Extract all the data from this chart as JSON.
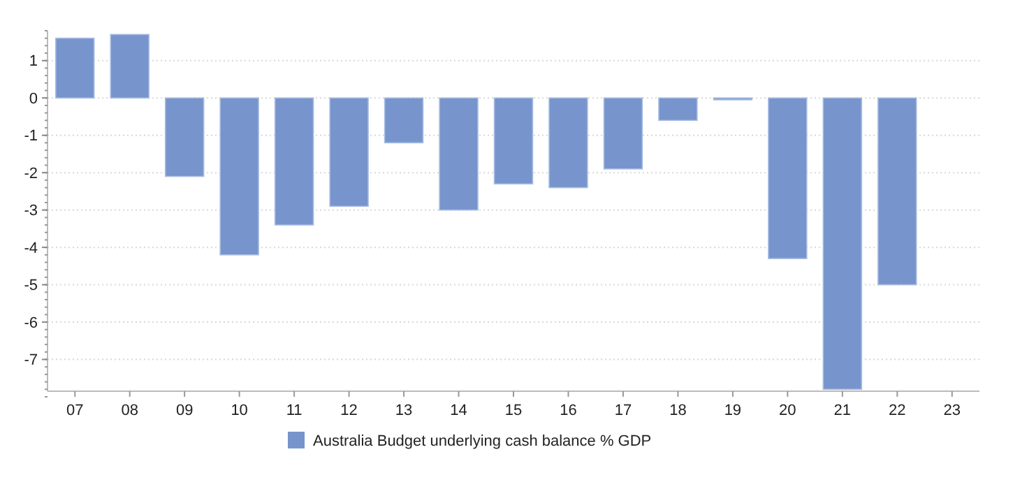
{
  "chart_data": {
    "type": "bar",
    "categories": [
      "07",
      "08",
      "09",
      "10",
      "11",
      "12",
      "13",
      "14",
      "15",
      "16",
      "17",
      "18",
      "19",
      "20",
      "21",
      "22",
      "23"
    ],
    "series": [
      {
        "name": "Australia Budget underlying cash balance % GDP",
        "color": "#7795cc",
        "values": [
          1.6,
          1.7,
          -2.1,
          -4.2,
          -3.4,
          -2.9,
          -1.2,
          -3.0,
          -2.3,
          -2.4,
          -1.9,
          -0.6,
          -0.05,
          -4.3,
          -7.8,
          -5.0,
          null
        ]
      }
    ],
    "ylim": [
      -7.85,
      1.8
    ],
    "yticks": [
      -7,
      -6,
      -5,
      -4,
      -3,
      -2,
      -1,
      0,
      1
    ],
    "grid": "y",
    "legend": "bottom"
  }
}
